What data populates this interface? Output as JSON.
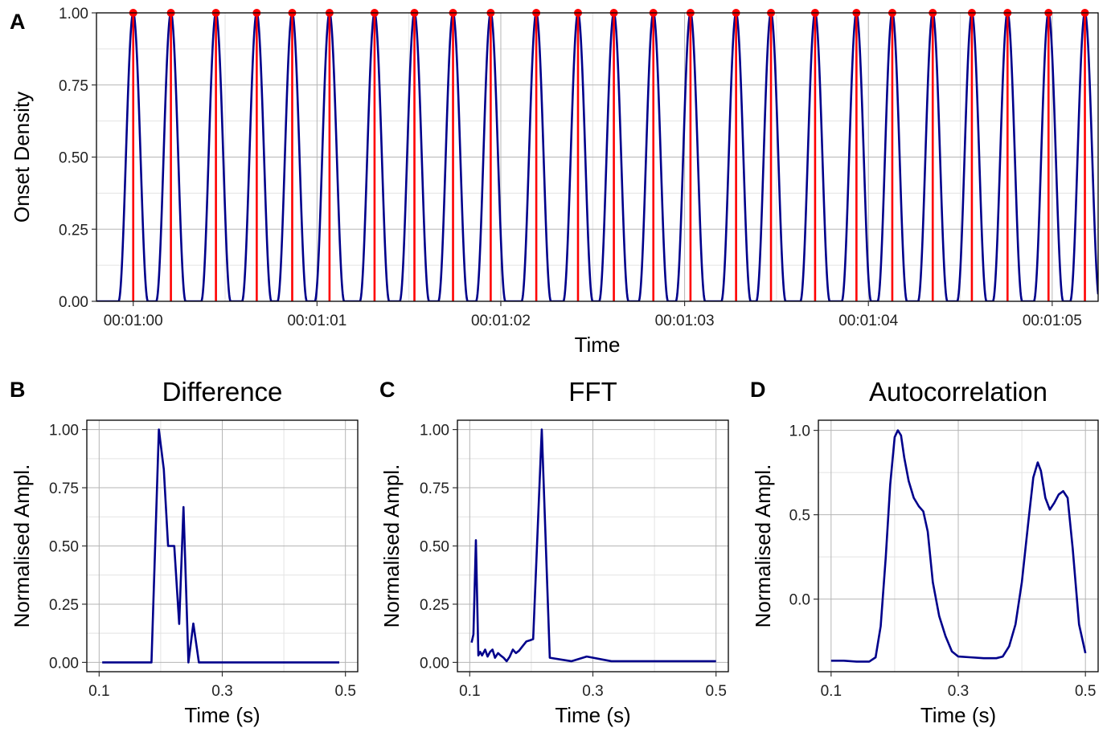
{
  "colors": {
    "line": "#00008B",
    "onset": "#FF0000",
    "grid_major": "#b5b5b5",
    "grid_minor": "#e3e3e3",
    "frame": "#000000"
  },
  "chart_data": [
    {
      "id": "A",
      "panel_label": "A",
      "type": "line",
      "title": "",
      "xlabel": "Time",
      "ylabel": "Onset Density",
      "xlim": [
        59.8,
        65.25
      ],
      "ylim": [
        0,
        1
      ],
      "x_ticks": [
        60,
        61,
        62,
        63,
        64,
        65
      ],
      "x_tick_labels": [
        "00:01:00",
        "00:01:01",
        "00:01:02",
        "00:01:03",
        "00:01:04",
        "00:01:05"
      ],
      "y_ticks": [
        0,
        0.25,
        0.5,
        0.75,
        1
      ],
      "y_tick_labels": [
        "0.00",
        "0.25",
        "0.50",
        "0.75",
        "1.00"
      ],
      "grid": true,
      "onset_times": [
        60.0,
        60.205,
        60.45,
        60.672,
        60.865,
        61.068,
        61.313,
        61.53,
        61.74,
        61.945,
        62.193,
        62.42,
        62.615,
        62.83,
        63.032,
        63.28,
        63.47,
        63.71,
        63.935,
        64.13,
        64.35,
        64.563,
        64.757,
        64.98,
        65.178
      ],
      "series": [
        {
          "curve": "sum of narrow cosine-squared peaks centred on each onset time",
          "peak_value": 1.0,
          "peak_halfwidth_s": 0.08
        }
      ]
    },
    {
      "id": "B",
      "panel_label": "B",
      "type": "line",
      "title": "Difference",
      "xlabel": "Time (s)",
      "ylabel": "Normalised Ampl.",
      "xlim": [
        0.08,
        0.52
      ],
      "ylim": [
        -0.04,
        1.04
      ],
      "x_ticks": [
        0.1,
        0.3,
        0.5
      ],
      "x_tick_labels": [
        "0.1",
        "0.3",
        "0.5"
      ],
      "y_ticks": [
        0,
        0.25,
        0.5,
        0.75,
        1
      ],
      "y_tick_labels": [
        "0.00",
        "0.25",
        "0.50",
        "0.75",
        "1.00"
      ],
      "grid": true,
      "x": [
        0.105,
        0.185,
        0.197,
        0.205,
        0.212,
        0.222,
        0.23,
        0.237,
        0.245,
        0.253,
        0.262,
        0.268,
        0.49
      ],
      "y": [
        0,
        0,
        1.0,
        0.83,
        0.5,
        0.5,
        0.165,
        0.667,
        0,
        0.167,
        0,
        0,
        0
      ]
    },
    {
      "id": "C",
      "panel_label": "C",
      "type": "line",
      "title": "FFT",
      "xlabel": "Time (s)",
      "ylabel": "Normalised Ampl.",
      "xlim": [
        0.08,
        0.52
      ],
      "ylim": [
        -0.04,
        1.04
      ],
      "x_ticks": [
        0.1,
        0.3,
        0.5
      ],
      "x_tick_labels": [
        "0.1",
        "0.3",
        "0.5"
      ],
      "y_ticks": [
        0,
        0.25,
        0.5,
        0.75,
        1
      ],
      "y_tick_labels": [
        "0.00",
        "0.25",
        "0.50",
        "0.75",
        "1.00"
      ],
      "grid": true,
      "x": [
        0.103,
        0.106,
        0.11,
        0.114,
        0.117,
        0.12,
        0.125,
        0.129,
        0.133,
        0.137,
        0.141,
        0.146,
        0.15,
        0.155,
        0.16,
        0.165,
        0.17,
        0.175,
        0.18,
        0.186,
        0.192,
        0.198,
        0.203,
        0.217,
        0.23,
        0.265,
        0.29,
        0.33,
        0.38,
        0.43,
        0.5
      ],
      "y": [
        0.085,
        0.12,
        0.525,
        0.03,
        0.045,
        0.03,
        0.055,
        0.025,
        0.045,
        0.055,
        0.02,
        0.04,
        0.03,
        0.02,
        0.005,
        0.025,
        0.055,
        0.04,
        0.05,
        0.07,
        0.09,
        0.095,
        0.1,
        1.0,
        0.02,
        0.005,
        0.025,
        0.005,
        0.005,
        0.005,
        0.005
      ]
    },
    {
      "id": "D",
      "panel_label": "D",
      "type": "line",
      "title": "Autocorrelation",
      "xlabel": "Time (s)",
      "ylabel": "Normalised Ampl.",
      "xlim": [
        0.08,
        0.52
      ],
      "ylim": [
        -0.43,
        1.06
      ],
      "x_ticks": [
        0.1,
        0.3,
        0.5
      ],
      "x_tick_labels": [
        "0.1",
        "0.3",
        "0.5"
      ],
      "y_ticks": [
        0,
        0.5,
        1
      ],
      "y_tick_labels": [
        "0.0",
        "0.5",
        "1.0"
      ],
      "grid": true,
      "x": [
        0.1,
        0.12,
        0.14,
        0.16,
        0.17,
        0.178,
        0.186,
        0.193,
        0.2,
        0.205,
        0.21,
        0.215,
        0.222,
        0.23,
        0.238,
        0.245,
        0.252,
        0.26,
        0.27,
        0.28,
        0.29,
        0.3,
        0.32,
        0.34,
        0.36,
        0.37,
        0.38,
        0.39,
        0.4,
        0.41,
        0.418,
        0.425,
        0.43,
        0.437,
        0.444,
        0.451,
        0.458,
        0.465,
        0.472,
        0.48,
        0.49,
        0.5
      ],
      "y": [
        -0.365,
        -0.365,
        -0.37,
        -0.37,
        -0.345,
        -0.16,
        0.25,
        0.68,
        0.96,
        1.0,
        0.97,
        0.84,
        0.7,
        0.6,
        0.55,
        0.52,
        0.4,
        0.1,
        -0.1,
        -0.22,
        -0.31,
        -0.34,
        -0.345,
        -0.35,
        -0.35,
        -0.34,
        -0.28,
        -0.15,
        0.1,
        0.45,
        0.72,
        0.81,
        0.76,
        0.6,
        0.53,
        0.57,
        0.62,
        0.64,
        0.6,
        0.3,
        -0.15,
        -0.32
      ]
    }
  ]
}
